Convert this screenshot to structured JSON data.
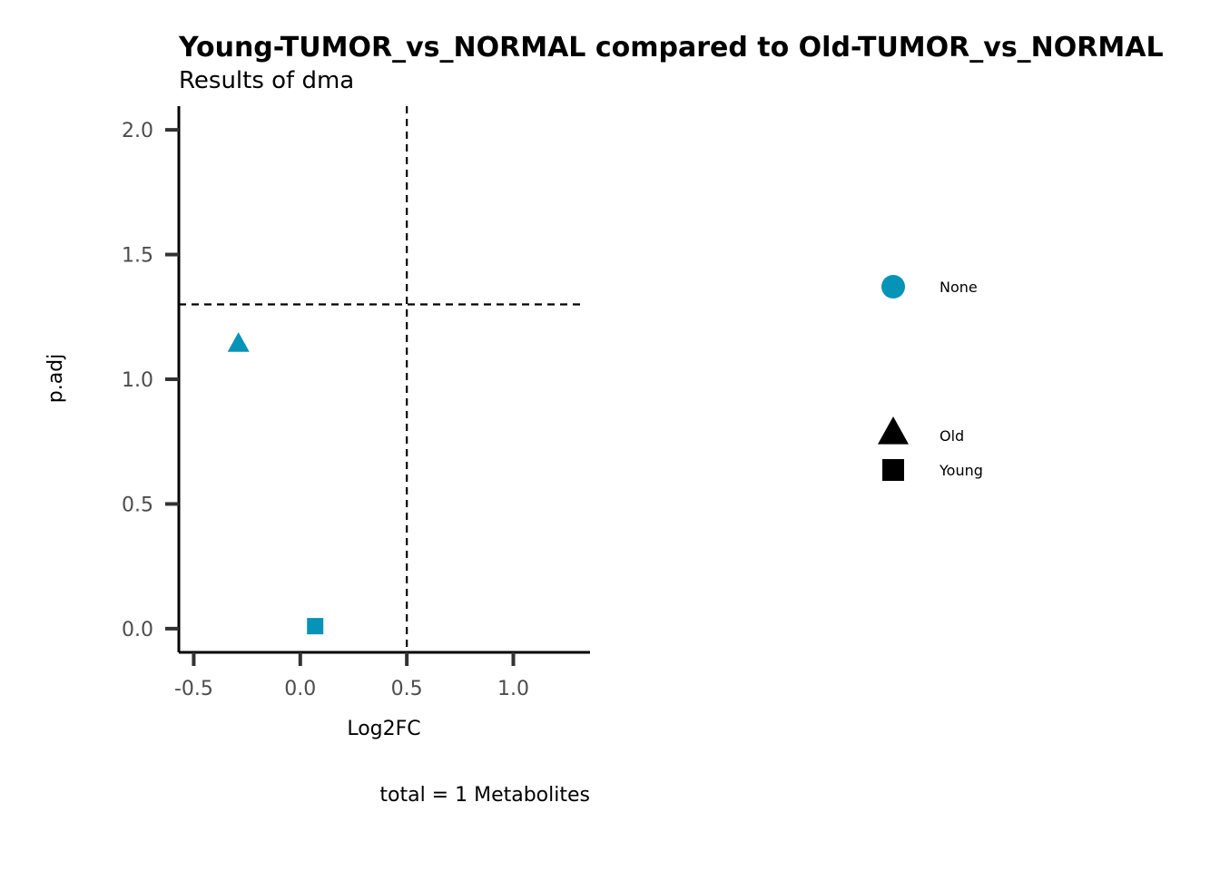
{
  "chart_data": {
    "type": "scatter",
    "title": "Young-TUMOR_vs_NORMAL compared to Old-TUMOR_vs_NORMAL",
    "subtitle": "Results of dma",
    "xlabel": "Log2FC",
    "ylabel": "p.adj",
    "caption": "total = 1 Metabolites",
    "xlim": [
      -0.57,
      1.36
    ],
    "ylim": [
      -0.095,
      2.095
    ],
    "x_ticks": [
      -0.5,
      0.0,
      0.5,
      1.0
    ],
    "x_tick_labels": [
      "-0.5",
      "0.0",
      "0.5",
      "1.0"
    ],
    "y_ticks": [
      0.0,
      0.5,
      1.0,
      1.5,
      2.0
    ],
    "y_tick_labels": [
      "0.0",
      "0.5",
      "1.0",
      "1.5",
      "2.0"
    ],
    "threshold_lines": {
      "x": 0.5,
      "y": 1.3
    },
    "points": [
      {
        "x": -0.29,
        "y": 1.14,
        "shape": "triangle",
        "group": "Old",
        "color_group": "None"
      },
      {
        "x": 0.07,
        "y": 0.01,
        "shape": "square",
        "group": "Young",
        "color_group": "None"
      }
    ],
    "legend": {
      "placement": "right",
      "color_items": [
        {
          "label": "None",
          "color": "#0593B8"
        }
      ],
      "shape_items": [
        {
          "label": "Old",
          "shape": "triangle"
        },
        {
          "label": "Young",
          "shape": "square"
        }
      ]
    },
    "grid": false
  }
}
